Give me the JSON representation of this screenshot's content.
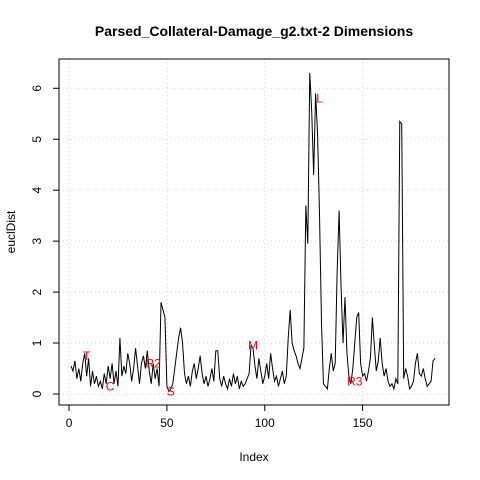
{
  "chart_data": {
    "type": "line",
    "title": "Parsed_Collateral-Damage_g2.txt-2 Dimensions",
    "xlabel": "Index",
    "ylabel": "euclDist",
    "xlim": [
      1,
      187
    ],
    "ylim": [
      0,
      6.3
    ],
    "xticks": [
      0,
      50,
      100,
      150
    ],
    "yticks": [
      0,
      1,
      2,
      3,
      4,
      5,
      6
    ],
    "grid": true,
    "line_color": "#000000",
    "annotation_color": "#ff0000",
    "values": [
      0.55,
      0.45,
      0.65,
      0.3,
      0.5,
      0.25,
      0.6,
      0.8,
      0.35,
      0.7,
      0.15,
      0.45,
      0.2,
      0.35,
      0.15,
      0.25,
      0.1,
      0.4,
      0.2,
      0.55,
      0.3,
      0.6,
      0.2,
      0.45,
      0.15,
      1.1,
      0.35,
      0.55,
      0.4,
      0.8,
      0.6,
      0.25,
      0.5,
      0.9,
      0.55,
      0.2,
      0.6,
      0.75,
      0.5,
      0.85,
      0.45,
      0.2,
      0.6,
      0.3,
      0.5,
      0.15,
      1.8,
      1.65,
      1.5,
      0.15,
      0.05,
      0.1,
      0.2,
      0.5,
      0.8,
      1.1,
      1.3,
      1.0,
      0.4,
      0.2,
      0.35,
      0.15,
      0.45,
      0.6,
      0.3,
      0.5,
      0.75,
      0.4,
      0.2,
      0.35,
      0.15,
      0.3,
      0.5,
      0.25,
      0.85,
      0.85,
      0.3,
      0.15,
      0.35,
      0.2,
      0.1,
      0.3,
      0.15,
      0.4,
      0.2,
      0.35,
      0.1,
      0.25,
      0.15,
      0.2,
      0.3,
      0.4,
      0.95,
      0.9,
      0.55,
      0.3,
      0.7,
      0.45,
      0.2,
      0.35,
      0.6,
      0.3,
      0.8,
      0.5,
      0.25,
      0.35,
      0.15,
      0.3,
      0.45,
      0.2,
      0.35,
      1.1,
      1.65,
      1.0,
      0.85,
      0.75,
      0.6,
      0.5,
      0.7,
      0.9,
      3.7,
      2.95,
      6.3,
      5.55,
      4.3,
      5.9,
      5.1,
      3.5,
      1.4,
      0.2,
      0.15,
      0.1,
      0.5,
      0.8,
      0.45,
      0.6,
      2.4,
      3.6,
      2.1,
      1.0,
      1.9,
      0.8,
      0.35,
      0.2,
      0.5,
      1.0,
      1.5,
      1.6,
      0.6,
      0.35,
      0.4,
      0.25,
      0.45,
      0.7,
      1.5,
      0.95,
      0.45,
      0.65,
      1.1,
      0.6,
      0.35,
      0.5,
      0.25,
      0.15,
      0.2,
      0.1,
      0.3,
      0.2,
      5.35,
      5.3,
      0.3,
      0.5,
      0.35,
      0.1,
      0.15,
      0.25,
      0.6,
      0.8,
      0.4,
      0.35,
      0.5,
      0.3,
      0.15,
      0.2,
      0.25,
      0.65,
      0.7
    ],
    "annotations": [
      {
        "label": "T",
        "x": 9,
        "y": 0.75
      },
      {
        "label": "C",
        "x": 21,
        "y": 0.15
      },
      {
        "label": "R2",
        "x": 43,
        "y": 0.6
      },
      {
        "label": "S",
        "x": 52,
        "y": 0.05
      },
      {
        "label": "M",
        "x": 94,
        "y": 0.95
      },
      {
        "label": "L",
        "x": 128,
        "y": 5.8
      },
      {
        "label": "R3",
        "x": 146,
        "y": 0.25
      }
    ]
  }
}
